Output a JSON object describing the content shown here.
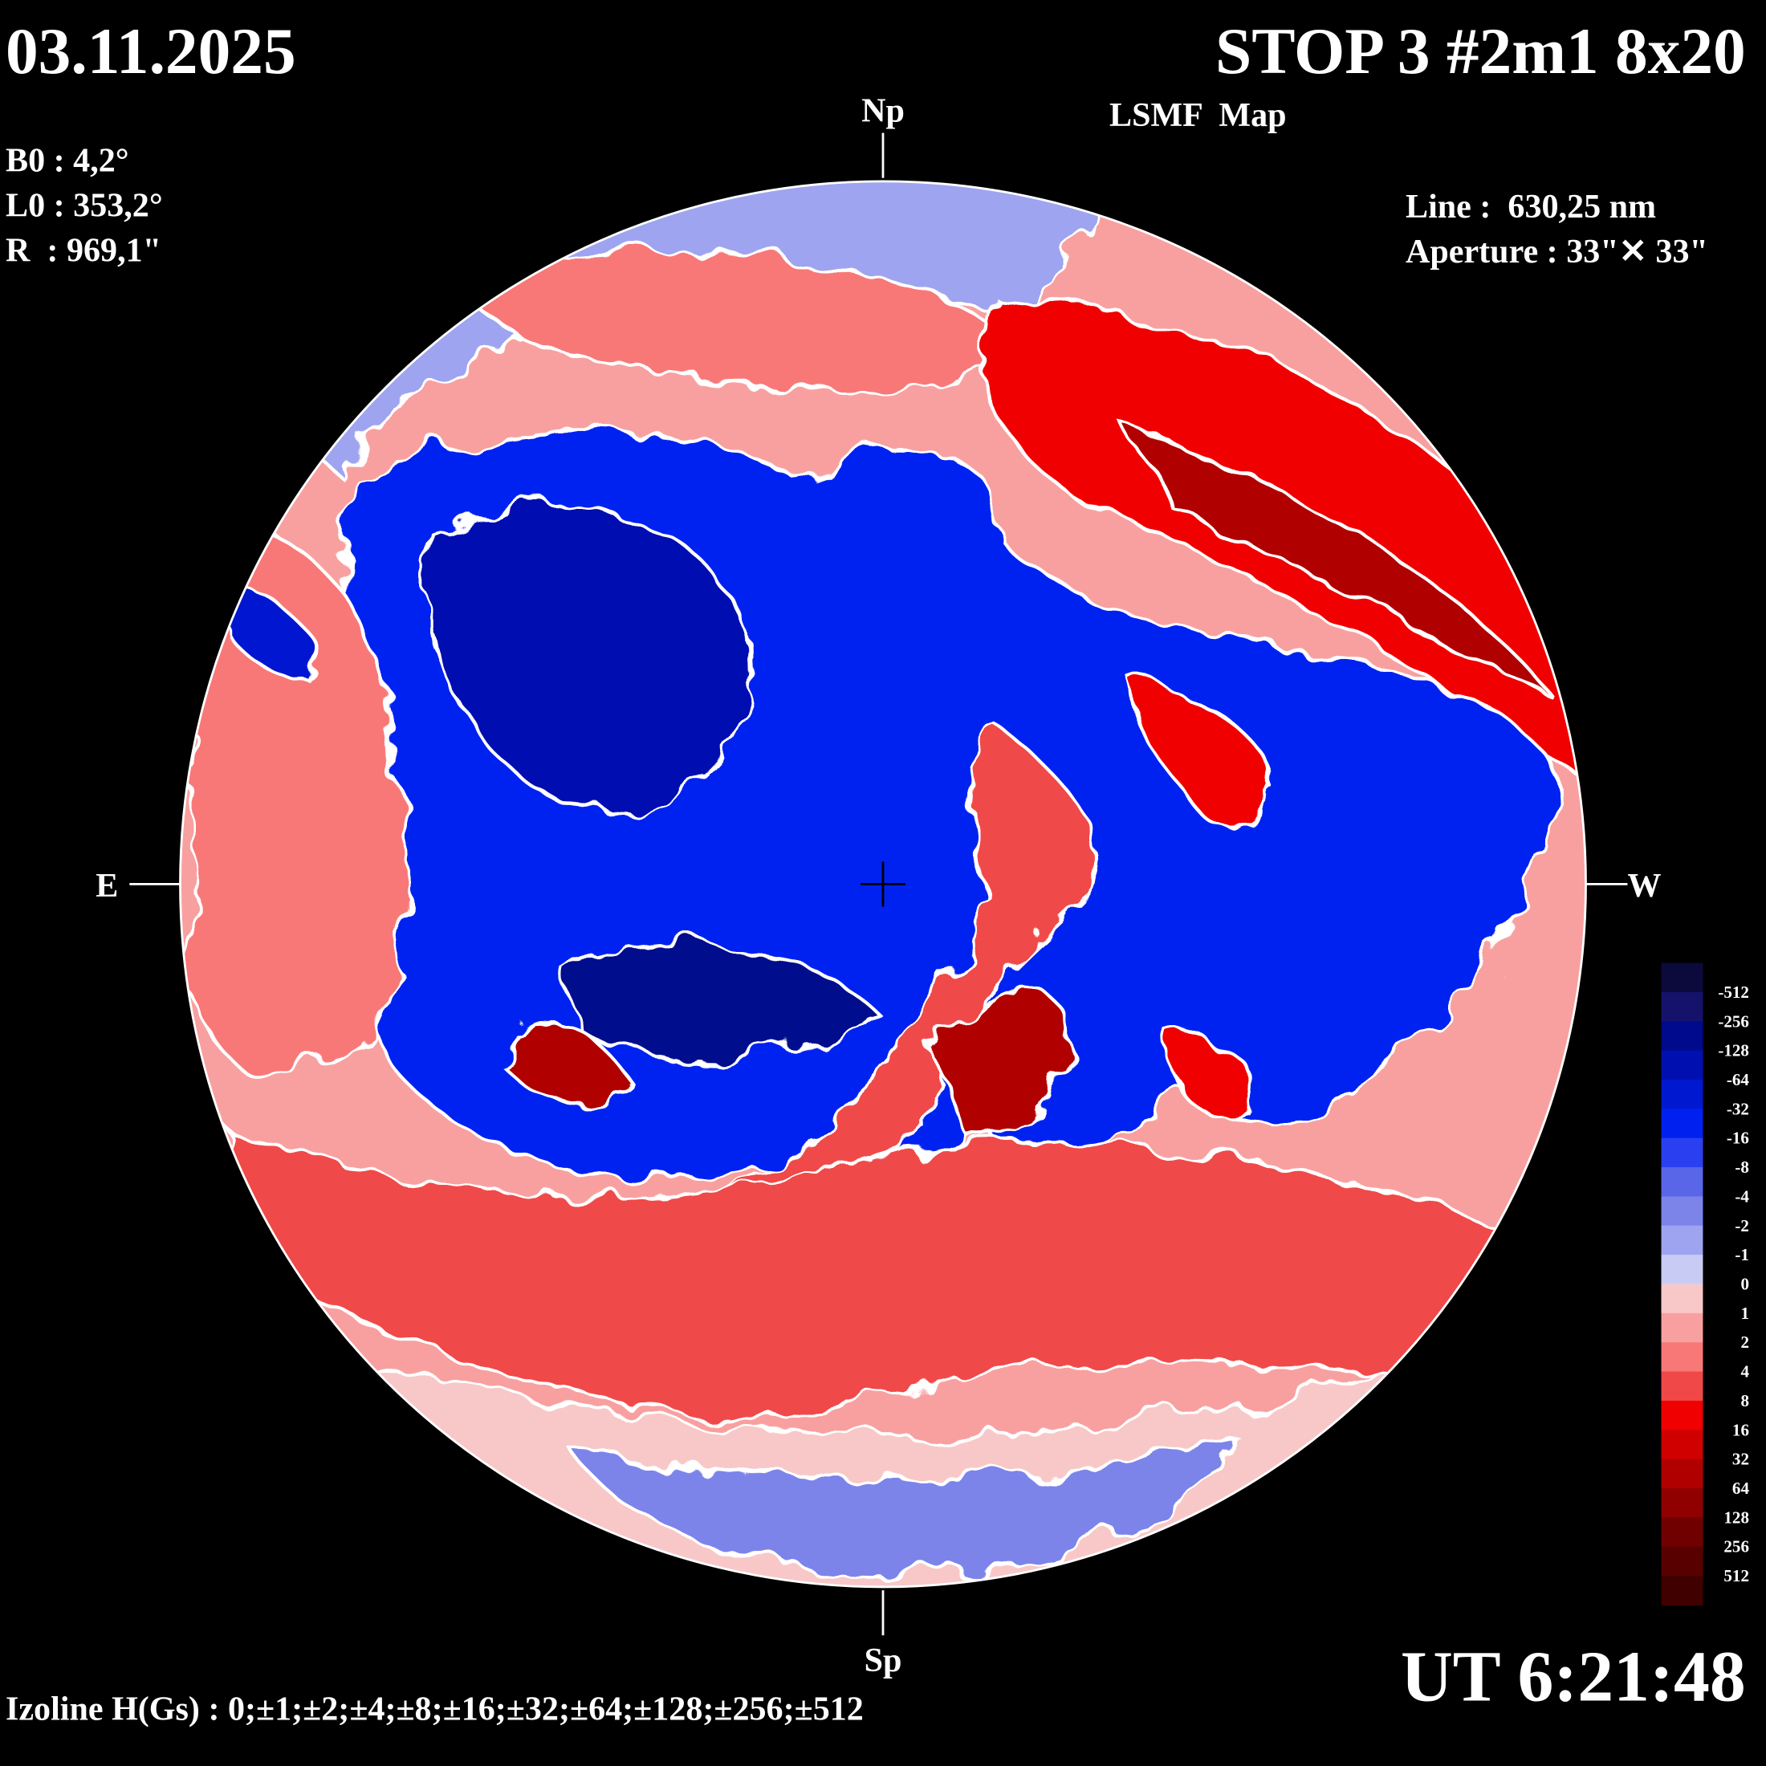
{
  "header": {
    "date": "03.11.2025",
    "title": "STOP 3 #2m1 8x20",
    "subtitle": "LSMF  Map"
  },
  "params": {
    "b0": "B0 : 4,2°",
    "l0": "L0 : 353,2°",
    "r": "R  : 969,1\"",
    "line": "Line :  630,25 nm",
    "aperture": "Aperture : 33\"✕ 33\""
  },
  "directions": {
    "north": "Np",
    "south": "Sp",
    "east": "E",
    "west": "W"
  },
  "time": "UT 6:21:48",
  "izoline": "Izoline H(Gs) : 0;±1;±2;±4;±8;±16;±32;±64;±128;±256;±512",
  "legend": {
    "levels": [
      -512,
      -256,
      -128,
      -64,
      -32,
      -16,
      -8,
      -4,
      -2,
      -1,
      0,
      1,
      2,
      4,
      8,
      16,
      32,
      64,
      128,
      256,
      512
    ],
    "colors": [
      "#0c0a3c",
      "#14126a",
      "#000a8c",
      "#0010b0",
      "#0018d0",
      "#0020f0",
      "#2a40f0",
      "#5a66e8",
      "#7c84ea",
      "#9ea4f0",
      "#c8ccf4",
      "#f8c8c8",
      "#f8a0a0",
      "#f87878",
      "#f04848",
      "#f00000",
      "#d00000",
      "#b00000",
      "#900000",
      "#700000",
      "#580000",
      "#400000"
    ]
  }
}
